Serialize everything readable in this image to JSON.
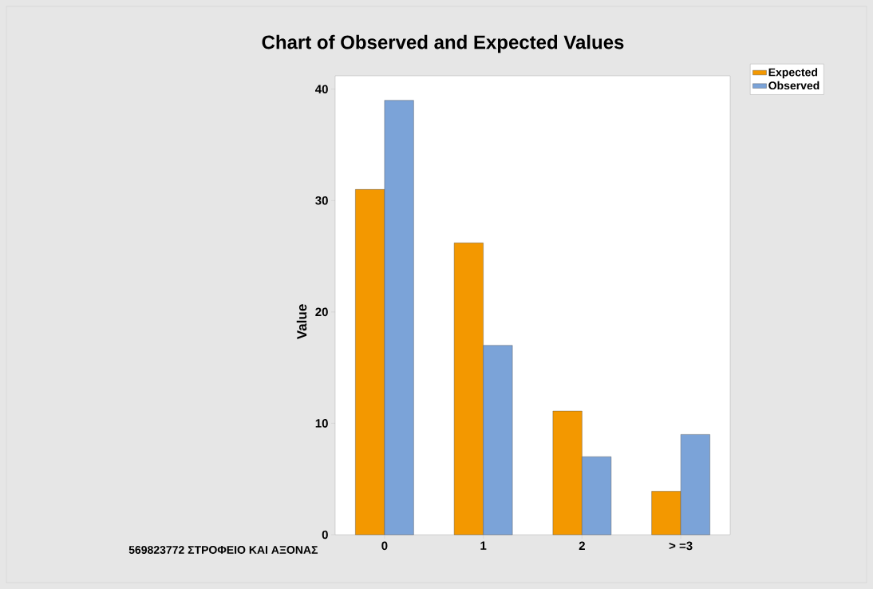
{
  "chart_data": {
    "type": "bar",
    "title": "Chart of Observed and Expected Values",
    "xlabel": "569823772 ΣΤΡΟΦΕΙΟ ΚΑΙ ΑΞΟΝΑΣ",
    "ylabel": "Value",
    "categories": [
      "0",
      "1",
      "2",
      "> =3"
    ],
    "series": [
      {
        "name": "Expected",
        "color": "#f39800",
        "values": [
          31.0,
          26.2,
          11.1,
          3.9
        ]
      },
      {
        "name": "Observed",
        "color": "#7ba3d8",
        "values": [
          39,
          17,
          7,
          9
        ]
      }
    ],
    "ylim": [
      0,
      41.2
    ],
    "yticks": [
      0,
      10,
      20,
      30,
      40
    ],
    "legend": "top right"
  }
}
